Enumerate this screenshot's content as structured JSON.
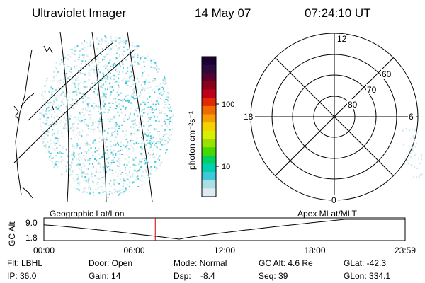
{
  "header": {
    "instrument": "Ultraviolet Imager",
    "date": "14 May 07",
    "time": "07:24:10 UT"
  },
  "colorbar": {
    "unit_label": "photon cm⁻²s⁻¹",
    "tick_100": "100",
    "tick_10": "10",
    "colors": [
      "#1a0033",
      "#2b0a3d",
      "#5a0030",
      "#8a0018",
      "#c0001a",
      "#e02a00",
      "#f06a00",
      "#f4a000",
      "#f4d200",
      "#d8f000",
      "#9ce000",
      "#48d800",
      "#00d060",
      "#00d0b0",
      "#40c8d8",
      "#a8e0e8",
      "#dcecf0"
    ]
  },
  "polar_plot": {
    "mlt_labels": {
      "top": "12",
      "bottom": "0",
      "left": "18",
      "right": "6"
    },
    "lat_labels": [
      "60",
      "70",
      "80"
    ]
  },
  "timeline": {
    "left_label": "Geographic Lat/Lon",
    "right_label": "Apex MLat/MLT",
    "y_axis_label": "GC Alt",
    "y_max": "9.0",
    "y_min": "1.8",
    "x_ticks": [
      "00:00",
      "06:00",
      "12:00",
      "18:00",
      "23:59"
    ],
    "current_time_hours": 7.4
  },
  "info": {
    "flt": "Flt: LBHL",
    "door": "Door: Open",
    "mode": "Mode: Normal",
    "gc_alt": "GC Alt: 4.6 Re",
    "glat": "GLat: -42.3",
    "ip": "IP: 36.0",
    "gain": "Gain: 14",
    "dsp": "Dsp:    -8.4",
    "seq": "Seq: 39",
    "glon": "GLon: 334.1"
  }
}
